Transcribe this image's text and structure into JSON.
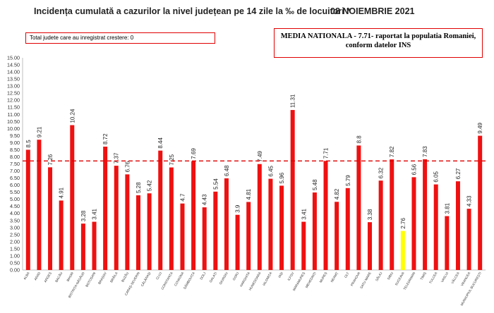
{
  "title": "Incidența cumulată a cazurilor la nivel județean pe 14 zile la ‰ de locuitori *",
  "date": "08 NOIEMBRIE 2021",
  "info_box": "Total judete care au inregistrat crestere: 0",
  "national_box": {
    "line1": "MEDIA NATIONALA - 7.71-  raportat la populatia Romaniei,",
    "line2": "conform datelor INS"
  },
  "chart_data": {
    "type": "bar",
    "title": "Incidența cumulată a cazurilor la nivel județean pe 14 zile la ‰ de locuitori *",
    "xlabel": "",
    "ylabel": "",
    "ylim": [
      0,
      15
    ],
    "ytick_step": 0.5,
    "reference_line": {
      "value": 7.71,
      "label": "MEDIA NATIONALA",
      "style": "dashed",
      "color": "#e00000"
    },
    "categories": [
      "ALBA",
      "ARAD",
      "ARGEȘ",
      "BACĂU",
      "BIHOR",
      "BISTRIȚA-NĂSĂUD",
      "BOTOȘANI",
      "BRAȘOV",
      "BRĂILA",
      "BUZĂU",
      "CARAȘ-SEVERIN",
      "CĂLĂRAȘI",
      "CLUJ",
      "CONSTANȚA",
      "COVASNA",
      "DÂMBOVIȚA",
      "DOLJ",
      "GALAȚI",
      "GIURGIU",
      "GORJ",
      "HARGHITA",
      "HUNEDOARA",
      "IALOMIȚA",
      "IAȘI",
      "ILFOV",
      "MARAMUREȘ",
      "MEHEDINȚI",
      "MUREȘ",
      "NEAMȚ",
      "OLT",
      "PRAHOVA",
      "SATU MARE",
      "SĂLAJ",
      "SIBIU",
      "SUCEAVA",
      "TELEORMAN",
      "TIMIȘ",
      "TULCEA",
      "VASLUI",
      "VÂLCEA",
      "VRANCEA",
      "MUNICIPIUL BUCUREȘTI"
    ],
    "values": [
      8.5,
      9.21,
      7.26,
      4.91,
      10.24,
      3.28,
      3.41,
      8.72,
      7.37,
      6.76,
      5.28,
      5.42,
      8.44,
      7.25,
      4.7,
      7.69,
      4.43,
      5.54,
      6.48,
      3.9,
      4.81,
      7.49,
      6.45,
      5.96,
      11.31,
      3.41,
      5.48,
      7.71,
      4.82,
      5.79,
      8.8,
      3.38,
      6.32,
      7.82,
      2.76,
      6.56,
      7.83,
      6.05,
      3.81,
      6.27,
      4.33,
      9.49
    ],
    "value_labels": [
      "8.5",
      "9.21",
      "7.26",
      "4.91",
      "10.24",
      "3.28",
      "3.41",
      "8.72",
      "7.37",
      "6.76",
      "5.28",
      "5.42",
      "8.44",
      "7.25",
      "4.7",
      "7.69",
      "4.43",
      "5.54",
      "6.48",
      "3.9",
      "4.81",
      "7.49",
      "6.45",
      "5.96",
      "11.31",
      "3.41",
      "5.48",
      "7.71",
      "4.82",
      "5.79",
      "8.8",
      "3.38",
      "6.32",
      "7.82",
      "2.76",
      "6.56",
      "7.83",
      "6.05",
      "3.81",
      "6.27",
      "4.33",
      "9.49"
    ],
    "bar_color": "#ee1111",
    "highlight": {
      "category": "SUCEAVA",
      "color": "#ffff00"
    }
  }
}
